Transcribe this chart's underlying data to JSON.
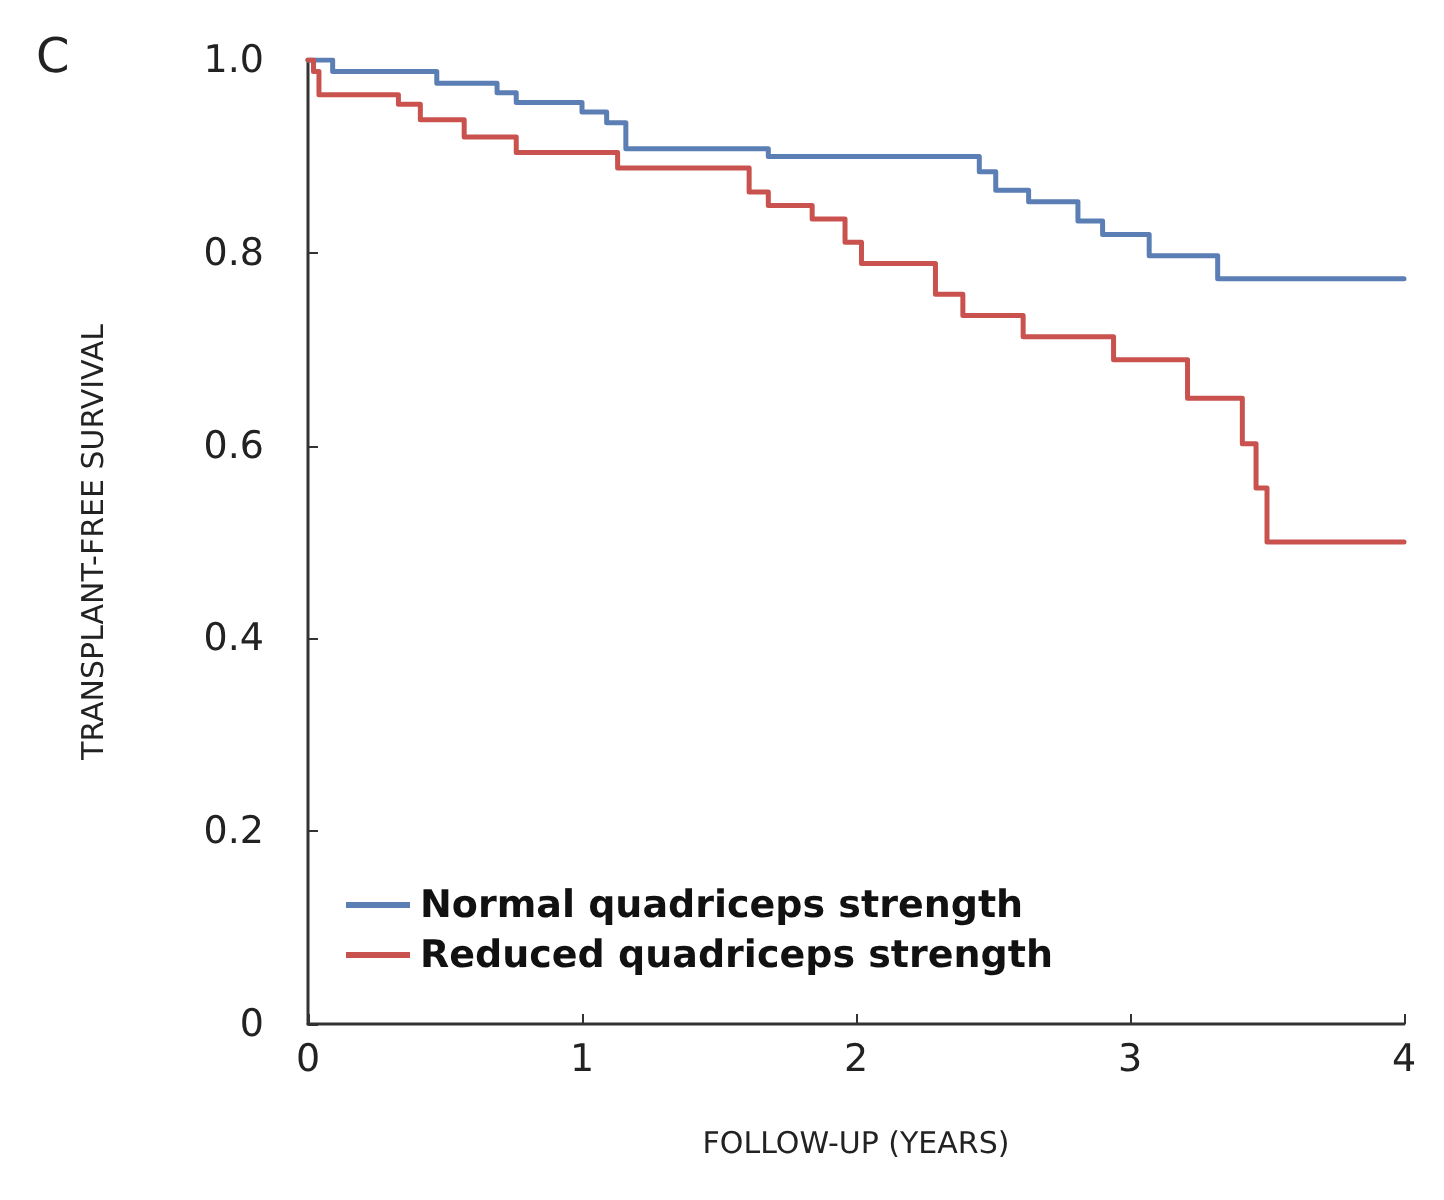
{
  "chart_data": {
    "type": "step",
    "xlabel": "FOLLOW-UP (YEARS)",
    "ylabel": "TRANSPLANT-FREE SURVIVAL",
    "annotations": [
      "C"
    ],
    "xlim": [
      0,
      4
    ],
    "xticks": [
      0,
      1,
      2,
      3,
      4
    ],
    "ylim": [
      0,
      1
    ],
    "yticks": [
      0,
      0.2,
      0.4,
      0.6,
      0.8,
      {
        "value": 1,
        "label": "1.0"
      }
    ],
    "grid": false,
    "legend": "bottom left",
    "marker": "none",
    "line_style": "solid",
    "series": [
      {
        "name": "Normal quadriceps strength",
        "color": "#5b7fb5",
        "x": [
          0,
          0.09,
          0.47,
          0.69,
          0.76,
          1.0,
          1.09,
          1.16,
          1.68,
          2.45,
          2.51,
          2.63,
          2.81,
          2.9,
          3.07,
          3.32,
          4
        ],
        "values": [
          1.0,
          0.988,
          0.976,
          0.966,
          0.956,
          0.946,
          0.935,
          0.908,
          0.9,
          0.884,
          0.865,
          0.853,
          0.833,
          0.819,
          0.797,
          0.773,
          0.773
        ]
      },
      {
        "name": "Reduced quadriceps strength",
        "color": "#c9524e",
        "x": [
          0,
          0.02,
          0.04,
          0.33,
          0.41,
          0.57,
          0.76,
          1.13,
          1.61,
          1.68,
          1.84,
          1.96,
          2.02,
          2.29,
          2.39,
          2.61,
          2.94,
          3.21,
          3.41,
          3.46,
          3.5,
          4
        ],
        "values": [
          1.0,
          0.988,
          0.964,
          0.954,
          0.938,
          0.92,
          0.904,
          0.888,
          0.863,
          0.849,
          0.835,
          0.811,
          0.789,
          0.757,
          0.735,
          0.713,
          0.689,
          0.649,
          0.602,
          0.556,
          0.5,
          0.5
        ]
      }
    ]
  }
}
